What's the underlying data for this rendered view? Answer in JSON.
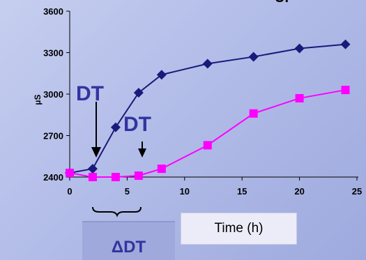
{
  "chart_data": {
    "type": "line",
    "title_fragment": "UP",
    "ylabel": "µS",
    "xlim": [
      0,
      25
    ],
    "ylim": [
      2400,
      3600
    ],
    "x_ticks": [
      0,
      5,
      10,
      15,
      20,
      25
    ],
    "y_ticks": [
      2400,
      2700,
      3000,
      3300,
      3600
    ],
    "x_tick_labels": [
      "0",
      "5",
      "10",
      "15",
      "20",
      "25"
    ],
    "y_tick_labels": [
      "2400",
      "2700",
      "3000",
      "3300",
      "3600"
    ],
    "series": [
      {
        "color": "#1a1a7a",
        "marker": "diamond",
        "x": [
          0,
          2,
          4,
          6,
          8,
          12,
          16,
          20,
          24
        ],
        "y": [
          2430,
          2460,
          2760,
          3010,
          3140,
          3220,
          3270,
          3330,
          3360
        ]
      },
      {
        "color": "#ff00ff",
        "marker": "square",
        "x": [
          0,
          2,
          4,
          6,
          8,
          12,
          16,
          20,
          24
        ],
        "y": [
          2430,
          2400,
          2400,
          2410,
          2460,
          2630,
          2860,
          2970,
          3030
        ]
      }
    ],
    "annotations": {
      "dt_label_1": "DT",
      "dt_label_2": "DT",
      "delta_label": "ΔDT",
      "time_label": "Time (h)"
    }
  },
  "colors": {
    "accent": "#3333a0"
  }
}
